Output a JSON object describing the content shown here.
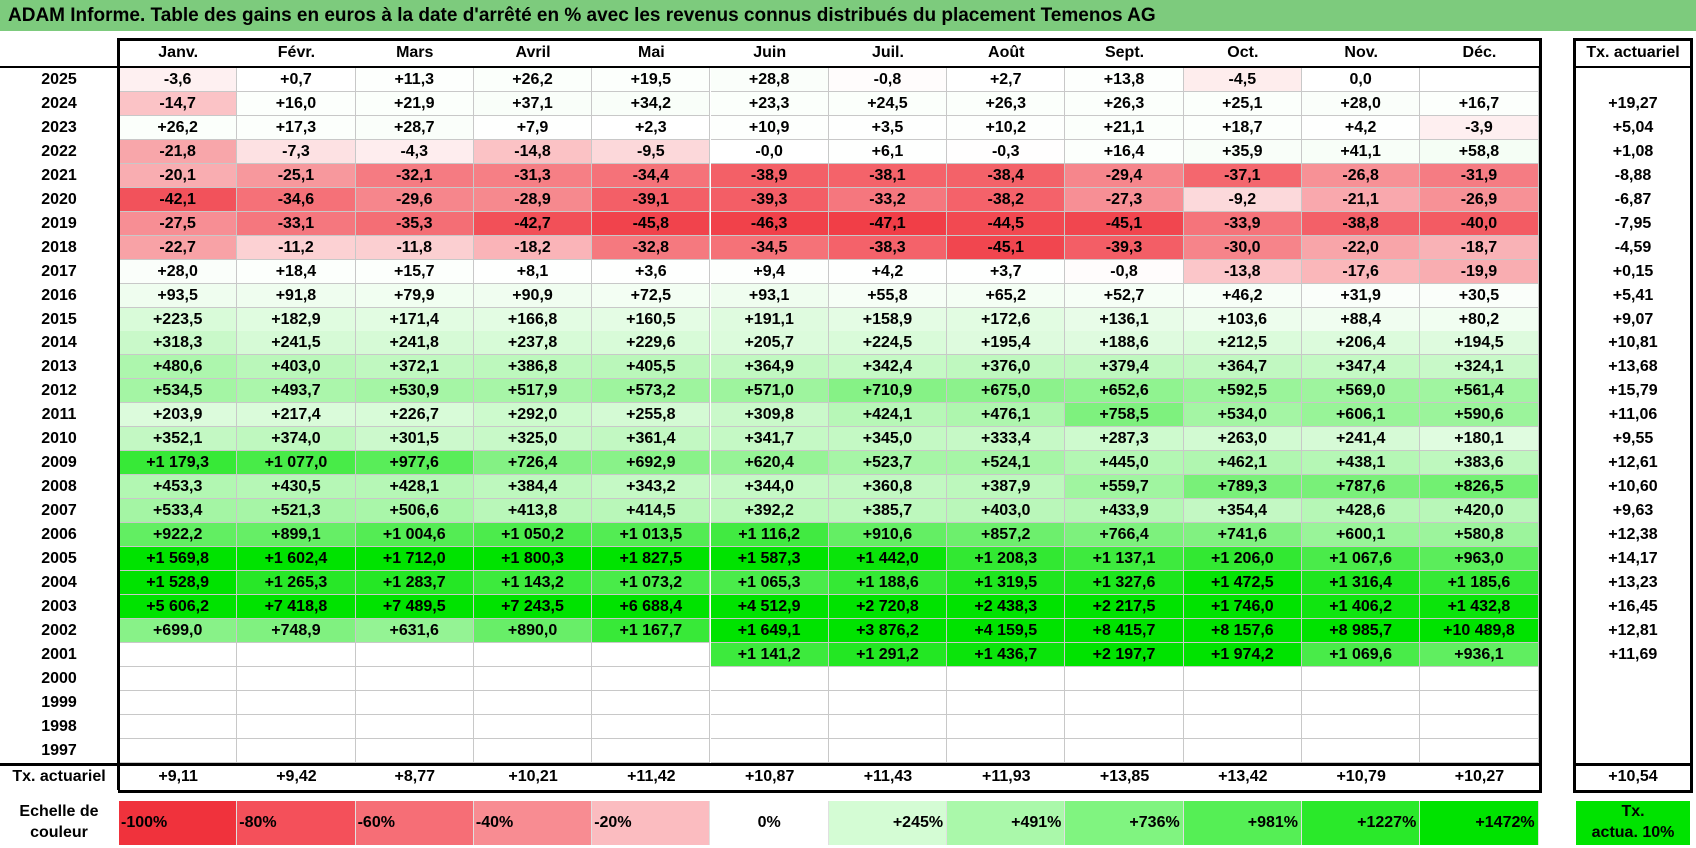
{
  "title": "ADAM Informe. Table des gains en euros à la date d'arrêté en % avec les revenus connus distribués du placement Temenos AG",
  "chart_data": {
    "type": "table",
    "months": [
      "Janv.",
      "Févr.",
      "Mars",
      "Avril",
      "Mai",
      "Juin",
      "Juil.",
      "Août",
      "Sept.",
      "Oct.",
      "Nov.",
      "Déc."
    ],
    "actuarial_header": "Tx. actuariel",
    "rows": [
      {
        "year": "2025",
        "values": [
          "-3,6",
          "+0,7",
          "+11,3",
          "+26,2",
          "+19,5",
          "+28,8",
          "-0,8",
          "+2,7",
          "+13,8",
          "-4,5",
          "0,0",
          ""
        ],
        "actuarial": ""
      },
      {
        "year": "2024",
        "values": [
          "-14,7",
          "+16,0",
          "+21,9",
          "+37,1",
          "+34,2",
          "+23,3",
          "+24,5",
          "+26,3",
          "+26,3",
          "+25,1",
          "+28,0",
          "+16,7"
        ],
        "actuarial": "+19,27"
      },
      {
        "year": "2023",
        "values": [
          "+26,2",
          "+17,3",
          "+28,7",
          "+7,9",
          "+2,3",
          "+10,9",
          "+3,5",
          "+10,2",
          "+21,1",
          "+18,7",
          "+4,2",
          "-3,9"
        ],
        "actuarial": "+5,04"
      },
      {
        "year": "2022",
        "values": [
          "-21,8",
          "-7,3",
          "-4,3",
          "-14,8",
          "-9,5",
          "-0,0",
          "+6,1",
          "-0,3",
          "+16,4",
          "+35,9",
          "+41,1",
          "+58,8"
        ],
        "actuarial": "+1,08"
      },
      {
        "year": "2021",
        "values": [
          "-20,1",
          "-25,1",
          "-32,1",
          "-31,3",
          "-34,4",
          "-38,9",
          "-38,1",
          "-38,4",
          "-29,4",
          "-37,1",
          "-26,8",
          "-31,9"
        ],
        "actuarial": "-8,88"
      },
      {
        "year": "2020",
        "values": [
          "-42,1",
          "-34,6",
          "-29,6",
          "-28,9",
          "-39,1",
          "-39,3",
          "-33,2",
          "-38,2",
          "-27,3",
          "-9,2",
          "-21,1",
          "-26,9"
        ],
        "actuarial": "-6,87"
      },
      {
        "year": "2019",
        "values": [
          "-27,5",
          "-33,1",
          "-35,3",
          "-42,7",
          "-45,8",
          "-46,3",
          "-47,1",
          "-44,5",
          "-45,1",
          "-33,9",
          "-38,8",
          "-40,0"
        ],
        "actuarial": "-7,95"
      },
      {
        "year": "2018",
        "values": [
          "-22,7",
          "-11,2",
          "-11,8",
          "-18,2",
          "-32,8",
          "-34,5",
          "-38,3",
          "-45,1",
          "-39,3",
          "-30,0",
          "-22,0",
          "-18,7"
        ],
        "actuarial": "-4,59"
      },
      {
        "year": "2017",
        "values": [
          "+28,0",
          "+18,4",
          "+15,7",
          "+8,1",
          "+3,6",
          "+9,4",
          "+4,2",
          "+3,7",
          "-0,8",
          "-13,8",
          "-17,6",
          "-19,9"
        ],
        "actuarial": "+0,15"
      },
      {
        "year": "2016",
        "values": [
          "+93,5",
          "+91,8",
          "+79,9",
          "+90,9",
          "+72,5",
          "+93,1",
          "+55,8",
          "+65,2",
          "+52,7",
          "+46,2",
          "+31,9",
          "+30,5"
        ],
        "actuarial": "+5,41"
      },
      {
        "year": "2015",
        "values": [
          "+223,5",
          "+182,9",
          "+171,4",
          "+166,8",
          "+160,5",
          "+191,1",
          "+158,9",
          "+172,6",
          "+136,1",
          "+103,6",
          "+88,4",
          "+80,2"
        ],
        "actuarial": "+9,07"
      },
      {
        "year": "2014",
        "values": [
          "+318,3",
          "+241,5",
          "+241,8",
          "+237,8",
          "+229,6",
          "+205,7",
          "+224,5",
          "+195,4",
          "+188,6",
          "+212,5",
          "+206,4",
          "+194,5"
        ],
        "actuarial": "+10,81"
      },
      {
        "year": "2013",
        "values": [
          "+480,6",
          "+403,0",
          "+372,1",
          "+386,8",
          "+405,5",
          "+364,9",
          "+342,4",
          "+376,0",
          "+379,4",
          "+364,7",
          "+347,4",
          "+324,1"
        ],
        "actuarial": "+13,68"
      },
      {
        "year": "2012",
        "values": [
          "+534,5",
          "+493,7",
          "+530,9",
          "+517,9",
          "+573,2",
          "+571,0",
          "+710,9",
          "+675,0",
          "+652,6",
          "+592,5",
          "+569,0",
          "+561,4"
        ],
        "actuarial": "+15,79"
      },
      {
        "year": "2011",
        "values": [
          "+203,9",
          "+217,4",
          "+226,7",
          "+292,0",
          "+255,8",
          "+309,8",
          "+424,1",
          "+476,1",
          "+758,5",
          "+534,0",
          "+606,1",
          "+590,6"
        ],
        "actuarial": "+11,06"
      },
      {
        "year": "2010",
        "values": [
          "+352,1",
          "+374,0",
          "+301,5",
          "+325,0",
          "+361,4",
          "+341,7",
          "+345,0",
          "+333,4",
          "+287,3",
          "+263,0",
          "+241,4",
          "+180,1"
        ],
        "actuarial": "+9,55"
      },
      {
        "year": "2009",
        "values": [
          "+1 179,3",
          "+1 077,0",
          "+977,6",
          "+726,4",
          "+692,9",
          "+620,4",
          "+523,7",
          "+524,1",
          "+445,0",
          "+462,1",
          "+438,1",
          "+383,6"
        ],
        "actuarial": "+12,61"
      },
      {
        "year": "2008",
        "values": [
          "+453,3",
          "+430,5",
          "+428,1",
          "+384,4",
          "+343,2",
          "+344,0",
          "+360,8",
          "+387,9",
          "+559,7",
          "+789,3",
          "+787,6",
          "+826,5"
        ],
        "actuarial": "+10,60"
      },
      {
        "year": "2007",
        "values": [
          "+533,4",
          "+521,3",
          "+506,6",
          "+413,8",
          "+414,5",
          "+392,2",
          "+385,7",
          "+403,0",
          "+433,9",
          "+354,4",
          "+428,6",
          "+420,0"
        ],
        "actuarial": "+9,63"
      },
      {
        "year": "2006",
        "values": [
          "+922,2",
          "+899,1",
          "+1 004,6",
          "+1 050,2",
          "+1 013,5",
          "+1 116,2",
          "+910,6",
          "+857,2",
          "+766,4",
          "+741,6",
          "+600,1",
          "+580,8"
        ],
        "actuarial": "+12,38"
      },
      {
        "year": "2005",
        "values": [
          "+1 569,8",
          "+1 602,4",
          "+1 712,0",
          "+1 800,3",
          "+1 827,5",
          "+1 587,3",
          "+1 442,0",
          "+1 208,3",
          "+1 137,1",
          "+1 206,0",
          "+1 067,6",
          "+963,0"
        ],
        "actuarial": "+14,17"
      },
      {
        "year": "2004",
        "values": [
          "+1 528,9",
          "+1 265,3",
          "+1 283,7",
          "+1 143,2",
          "+1 073,2",
          "+1 065,3",
          "+1 188,6",
          "+1 319,5",
          "+1 327,6",
          "+1 472,5",
          "+1 316,4",
          "+1 185,6"
        ],
        "actuarial": "+13,23"
      },
      {
        "year": "2003",
        "values": [
          "+5 606,2",
          "+7 418,8",
          "+7 489,5",
          "+7 243,5",
          "+6 688,4",
          "+4 512,9",
          "+2 720,8",
          "+2 438,3",
          "+2 217,5",
          "+1 746,0",
          "+1 406,2",
          "+1 432,8"
        ],
        "actuarial": "+16,45"
      },
      {
        "year": "2002",
        "values": [
          "+699,0",
          "+748,9",
          "+631,6",
          "+890,0",
          "+1 167,7",
          "+1 649,1",
          "+3 876,2",
          "+4 159,5",
          "+8 415,7",
          "+8 157,6",
          "+8 985,7",
          "+10 489,8"
        ],
        "actuarial": "+12,81"
      },
      {
        "year": "2001",
        "values": [
          "",
          "",
          "",
          "",
          "",
          "+1 141,2",
          "+1 291,2",
          "+1 436,7",
          "+2 197,7",
          "+1 974,2",
          "+1 069,6",
          "+936,1"
        ],
        "actuarial": "+11,69"
      },
      {
        "year": "2000",
        "values": [
          "",
          "",
          "",
          "",
          "",
          "",
          "",
          "",
          "",
          "",
          "",
          ""
        ],
        "actuarial": ""
      },
      {
        "year": "1999",
        "values": [
          "",
          "",
          "",
          "",
          "",
          "",
          "",
          "",
          "",
          "",
          "",
          ""
        ],
        "actuarial": ""
      },
      {
        "year": "1998",
        "values": [
          "",
          "",
          "",
          "",
          "",
          "",
          "",
          "",
          "",
          "",
          "",
          ""
        ],
        "actuarial": ""
      },
      {
        "year": "1997",
        "values": [
          "",
          "",
          "",
          "",
          "",
          "",
          "",
          "",
          "",
          "",
          "",
          ""
        ],
        "actuarial": ""
      }
    ],
    "footer": {
      "label": "Tx. actuariel",
      "values": [
        "+9,11",
        "+9,42",
        "+8,77",
        "+10,21",
        "+11,42",
        "+10,87",
        "+11,43",
        "+11,93",
        "+13,85",
        "+13,42",
        "+10,79",
        "+10,27"
      ],
      "overall": "+10,54"
    },
    "scale": {
      "label_line1": "Echelle de",
      "label_line2": "couleur",
      "steps": [
        {
          "text": "-100%",
          "color": "#f0323c"
        },
        {
          "text": "-80%",
          "color": "#f4505a"
        },
        {
          "text": "-60%",
          "color": "#f66e76"
        },
        {
          "text": "-40%",
          "color": "#f88c92"
        },
        {
          "text": "-20%",
          "color": "#fbbcc0"
        },
        {
          "text": "0%",
          "color": "#ffffff"
        },
        {
          "text": "+245%",
          "color": "#d4fcd4"
        },
        {
          "text": "+491%",
          "color": "#aaf8aa"
        },
        {
          "text": "+736%",
          "color": "#80f480"
        },
        {
          "text": "+981%",
          "color": "#55ef55"
        },
        {
          "text": "+1227%",
          "color": "#2ae92a"
        },
        {
          "text": "+1472%",
          "color": "#00e300"
        }
      ],
      "legend_box_line1": "Tx.",
      "legend_box_line2": "actua. 10%",
      "legend_box_color": "#00e300"
    },
    "colors": {
      "title_bar": "#7dcb7d",
      "negative_max": "#f0323c",
      "positive_max": "#00e300"
    }
  }
}
